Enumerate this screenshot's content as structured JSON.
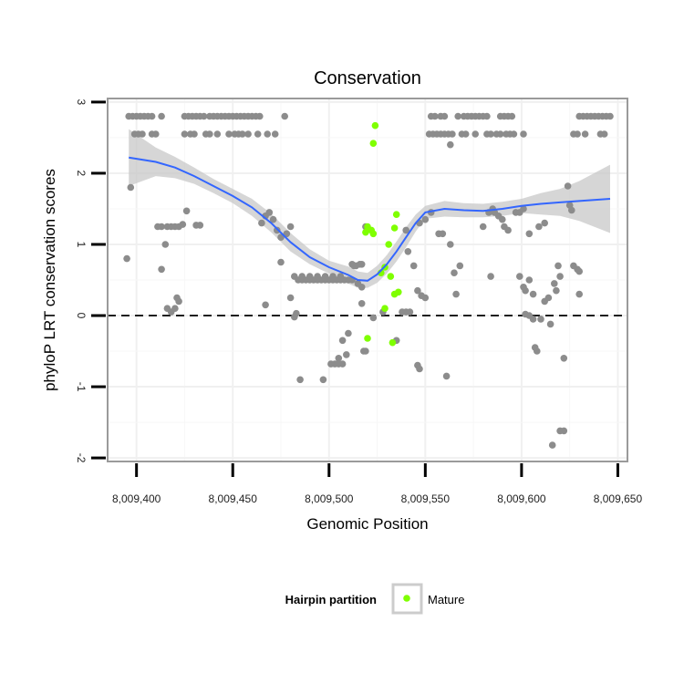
{
  "chart_data": {
    "type": "scatter",
    "title": "Conservation",
    "xlabel": "Genomic Position",
    "ylabel": "phyloP LRT conservation scores",
    "xlim": [
      8009385,
      8009655
    ],
    "ylim": [
      -2.05,
      3.05
    ],
    "x_ticks": [
      8009400,
      8009450,
      8009500,
      8009550,
      8009600,
      8009650
    ],
    "x_tick_labels": [
      "8,009,400",
      "8,009,450",
      "8,009,500",
      "8,009,550",
      "8,009,600",
      "8,009,650"
    ],
    "y_ticks": [
      -2,
      -1,
      0,
      1,
      2,
      3
    ],
    "y_tick_labels": [
      "-2",
      "-1",
      "0",
      "1",
      "2",
      "3"
    ],
    "grid": true,
    "reference_line": {
      "y": 0,
      "style": "dashed"
    },
    "legend": {
      "title": "Hairpin partition",
      "entries": [
        {
          "label": "Mature",
          "color": "#7fff00"
        }
      ],
      "position": "bottom"
    },
    "colors": {
      "other": "#8c8c8c",
      "mature": "#7fff00",
      "smooth": "#3366ff",
      "ribbon": "#c8c8c8"
    },
    "series": [
      {
        "color": "#8c8c8c",
        "points": [
          [
            8009395,
            0.8
          ],
          [
            8009397,
            1.8
          ],
          [
            8009396,
            2.8
          ],
          [
            8009398,
            2.8
          ],
          [
            8009400,
            2.8
          ],
          [
            8009402,
            2.8
          ],
          [
            8009404,
            2.8
          ],
          [
            8009406,
            2.8
          ],
          [
            8009408,
            2.8
          ],
          [
            8009413,
            2.8
          ],
          [
            8009399,
            2.55
          ],
          [
            8009401,
            2.55
          ],
          [
            8009403,
            2.55
          ],
          [
            8009408,
            2.55
          ],
          [
            8009410,
            2.55
          ],
          [
            8009411,
            1.25
          ],
          [
            8009413,
            1.25
          ],
          [
            8009416,
            1.25
          ],
          [
            8009418,
            1.25
          ],
          [
            8009420,
            1.25
          ],
          [
            8009422,
            1.25
          ],
          [
            8009424,
            1.28
          ],
          [
            8009426,
            1.47
          ],
          [
            8009431,
            1.27
          ],
          [
            8009433,
            1.27
          ],
          [
            8009413,
            0.65
          ],
          [
            8009415,
            1.0
          ],
          [
            8009416,
            0.1
          ],
          [
            8009418,
            0.05
          ],
          [
            8009420,
            0.1
          ],
          [
            8009421,
            0.25
          ],
          [
            8009422,
            0.2
          ],
          [
            8009425,
            2.8
          ],
          [
            8009427,
            2.8
          ],
          [
            8009429,
            2.8
          ],
          [
            8009431,
            2.8
          ],
          [
            8009433,
            2.8
          ],
          [
            8009435,
            2.8
          ],
          [
            8009438,
            2.8
          ],
          [
            8009440,
            2.8
          ],
          [
            8009442,
            2.8
          ],
          [
            8009444,
            2.8
          ],
          [
            8009446,
            2.8
          ],
          [
            8009448,
            2.8
          ],
          [
            8009450,
            2.8
          ],
          [
            8009452,
            2.8
          ],
          [
            8009454,
            2.8
          ],
          [
            8009456,
            2.8
          ],
          [
            8009458,
            2.8
          ],
          [
            8009460,
            2.8
          ],
          [
            8009462,
            2.8
          ],
          [
            8009464,
            2.8
          ],
          [
            8009477,
            2.8
          ],
          [
            8009425,
            2.55
          ],
          [
            8009428,
            2.55
          ],
          [
            8009430,
            2.55
          ],
          [
            8009436,
            2.55
          ],
          [
            8009438,
            2.55
          ],
          [
            8009442,
            2.55
          ],
          [
            8009448,
            2.55
          ],
          [
            8009451,
            2.55
          ],
          [
            8009453,
            2.55
          ],
          [
            8009455,
            2.55
          ],
          [
            8009458,
            2.55
          ],
          [
            8009463,
            2.55
          ],
          [
            8009468,
            2.55
          ],
          [
            8009472,
            2.55
          ],
          [
            8009465,
            1.3
          ],
          [
            8009467,
            1.4
          ],
          [
            8009469,
            1.45
          ],
          [
            8009471,
            1.35
          ],
          [
            8009473,
            1.2
          ],
          [
            8009475,
            1.1
          ],
          [
            8009478,
            1.15
          ],
          [
            8009480,
            1.25
          ],
          [
            8009475,
            0.75
          ],
          [
            8009467,
            0.15
          ],
          [
            8009482,
            0.55
          ],
          [
            8009484,
            0.5
          ],
          [
            8009480,
            0.25
          ],
          [
            8009482,
            -0.02
          ],
          [
            8009483,
            0.03
          ],
          [
            8009486,
            0.5
          ],
          [
            8009488,
            0.5
          ],
          [
            8009490,
            0.5
          ],
          [
            8009492,
            0.5
          ],
          [
            8009494,
            0.5
          ],
          [
            8009496,
            0.5
          ],
          [
            8009498,
            0.5
          ],
          [
            8009500,
            0.5
          ],
          [
            8009502,
            0.5
          ],
          [
            8009504,
            0.5
          ],
          [
            8009506,
            0.5
          ],
          [
            8009508,
            0.5
          ],
          [
            8009510,
            0.5
          ],
          [
            8009512,
            0.5
          ],
          [
            8009486,
            0.55
          ],
          [
            8009490,
            0.55
          ],
          [
            8009494,
            0.55
          ],
          [
            8009498,
            0.55
          ],
          [
            8009502,
            0.55
          ],
          [
            8009506,
            0.55
          ],
          [
            8009507,
            -0.35
          ],
          [
            8009509,
            -0.55
          ],
          [
            8009505,
            -0.6
          ],
          [
            8009501,
            -0.68
          ],
          [
            8009503,
            -0.68
          ],
          [
            8009505,
            -0.68
          ],
          [
            8009507,
            -0.68
          ],
          [
            8009485,
            -0.9
          ],
          [
            8009497,
            -0.9
          ],
          [
            8009510,
            -0.25
          ],
          [
            8009512,
            0.72
          ],
          [
            8009513,
            0.7
          ],
          [
            8009514,
            0.7
          ],
          [
            8009516,
            0.72
          ],
          [
            8009517,
            0.72
          ],
          [
            8009515,
            0.45
          ],
          [
            8009517,
            0.4
          ],
          [
            8009519,
            -0.5
          ],
          [
            8009518,
            -0.5
          ],
          [
            8009519,
            1.25
          ],
          [
            8009523,
            -0.03
          ],
          [
            8009528,
            0.05
          ],
          [
            8009517,
            0.17
          ],
          [
            8009538,
            0.05
          ],
          [
            8009540,
            0.05
          ],
          [
            8009542,
            0.05
          ],
          [
            8009535,
            -0.35
          ],
          [
            8009540,
            1.2
          ],
          [
            8009541,
            0.9
          ],
          [
            8009544,
            0.7
          ],
          [
            8009546,
            0.35
          ],
          [
            8009548,
            0.28
          ],
          [
            8009550,
            0.25
          ],
          [
            8009547,
            1.3
          ],
          [
            8009550,
            1.35
          ],
          [
            8009553,
            1.45
          ],
          [
            8009557,
            1.15
          ],
          [
            8009559,
            1.15
          ],
          [
            8009563,
            1.0
          ],
          [
            8009565,
            0.6
          ],
          [
            8009566,
            0.3
          ],
          [
            8009568,
            0.7
          ],
          [
            8009547,
            -0.75
          ],
          [
            8009546,
            -0.7
          ],
          [
            8009561,
            -0.85
          ],
          [
            8009552,
            2.55
          ],
          [
            8009554,
            2.55
          ],
          [
            8009556,
            2.55
          ],
          [
            8009558,
            2.55
          ],
          [
            8009560,
            2.55
          ],
          [
            8009562,
            2.55
          ],
          [
            8009564,
            2.55
          ],
          [
            8009569,
            2.55
          ],
          [
            8009571,
            2.55
          ],
          [
            8009563,
            2.4
          ],
          [
            8009553,
            2.8
          ],
          [
            8009555,
            2.8
          ],
          [
            8009558,
            2.8
          ],
          [
            8009560,
            2.8
          ],
          [
            8009567,
            2.8
          ],
          [
            8009570,
            2.8
          ],
          [
            8009572,
            2.8
          ],
          [
            8009574,
            2.8
          ],
          [
            8009576,
            2.8
          ],
          [
            8009578,
            2.8
          ],
          [
            8009580,
            2.8
          ],
          [
            8009582,
            2.8
          ],
          [
            8009589,
            2.8
          ],
          [
            8009591,
            2.8
          ],
          [
            8009593,
            2.8
          ],
          [
            8009595,
            2.8
          ],
          [
            8009576,
            2.55
          ],
          [
            8009582,
            2.55
          ],
          [
            8009584,
            2.55
          ],
          [
            8009587,
            2.55
          ],
          [
            8009589,
            2.55
          ],
          [
            8009592,
            2.55
          ],
          [
            8009594,
            2.55
          ],
          [
            8009596,
            2.55
          ],
          [
            8009601,
            2.55
          ],
          [
            8009580,
            1.25
          ],
          [
            8009583,
            1.45
          ],
          [
            8009585,
            1.5
          ],
          [
            8009586,
            1.45
          ],
          [
            8009588,
            1.4
          ],
          [
            8009590,
            1.35
          ],
          [
            8009591,
            1.25
          ],
          [
            8009593,
            1.2
          ],
          [
            8009597,
            1.45
          ],
          [
            8009599,
            1.45
          ],
          [
            8009601,
            1.5
          ],
          [
            8009604,
            1.15
          ],
          [
            8009609,
            1.25
          ],
          [
            8009612,
            1.3
          ],
          [
            8009584,
            0.55
          ],
          [
            8009599,
            0.55
          ],
          [
            8009602,
            0.35
          ],
          [
            8009604,
            0.5
          ],
          [
            8009606,
            0.3
          ],
          [
            8009601,
            0.4
          ],
          [
            8009602,
            0.02
          ],
          [
            8009604,
            0.0
          ],
          [
            8009606,
            -0.05
          ],
          [
            8009607,
            -0.45
          ],
          [
            8009608,
            -0.5
          ],
          [
            8009610,
            -0.05
          ],
          [
            8009612,
            0.2
          ],
          [
            8009614,
            0.25
          ],
          [
            8009615,
            -0.12
          ],
          [
            8009617,
            0.45
          ],
          [
            8009619,
            0.7
          ],
          [
            8009618,
            0.35
          ],
          [
            8009620,
            0.55
          ],
          [
            8009622,
            -0.6
          ],
          [
            8009616,
            -1.82
          ],
          [
            8009620,
            -1.62
          ],
          [
            8009622,
            -1.62
          ],
          [
            8009624,
            1.82
          ],
          [
            8009625,
            1.55
          ],
          [
            8009627,
            0.7
          ],
          [
            8009629,
            0.65
          ],
          [
            8009630,
            0.62
          ],
          [
            8009630,
            0.3
          ],
          [
            8009626,
            1.48
          ],
          [
            8009627,
            2.55
          ],
          [
            8009629,
            2.55
          ],
          [
            8009633,
            2.55
          ],
          [
            8009641,
            2.55
          ],
          [
            8009643,
            2.55
          ],
          [
            8009630,
            2.8
          ],
          [
            8009632,
            2.8
          ],
          [
            8009634,
            2.8
          ],
          [
            8009636,
            2.8
          ],
          [
            8009638,
            2.8
          ],
          [
            8009640,
            2.8
          ],
          [
            8009642,
            2.8
          ],
          [
            8009644,
            2.8
          ],
          [
            8009646,
            2.8
          ]
        ]
      },
      {
        "name": "Mature",
        "color": "#7fff00",
        "points": [
          [
            8009524,
            2.67
          ],
          [
            8009523,
            2.42
          ],
          [
            8009520,
            1.25
          ],
          [
            8009522,
            1.2
          ],
          [
            8009519,
            1.17
          ],
          [
            8009523,
            1.15
          ],
          [
            8009535,
            1.42
          ],
          [
            8009534,
            1.23
          ],
          [
            8009531,
            1.0
          ],
          [
            8009527,
            0.6
          ],
          [
            8009529,
            0.68
          ],
          [
            8009532,
            0.55
          ],
          [
            8009534,
            0.3
          ],
          [
            8009536,
            0.33
          ],
          [
            8009529,
            0.1
          ],
          [
            8009520,
            -0.32
          ],
          [
            8009533,
            -0.38
          ]
        ]
      }
    ],
    "smooth": {
      "x": [
        8009396,
        8009410,
        8009420,
        8009430,
        8009440,
        8009450,
        8009460,
        8009470,
        8009480,
        8009490,
        8009500,
        8009510,
        8009515,
        8009520,
        8009525,
        8009530,
        8009535,
        8009540,
        8009545,
        8009550,
        8009560,
        8009570,
        8009580,
        8009590,
        8009600,
        8009610,
        8009620,
        8009630,
        8009646
      ],
      "y": [
        2.22,
        2.16,
        2.08,
        1.96,
        1.82,
        1.68,
        1.52,
        1.3,
        1.03,
        0.82,
        0.68,
        0.57,
        0.5,
        0.49,
        0.58,
        0.72,
        0.9,
        1.1,
        1.3,
        1.45,
        1.5,
        1.48,
        1.47,
        1.5,
        1.54,
        1.57,
        1.59,
        1.61,
        1.64
      ],
      "lower": [
        1.82,
        1.96,
        1.93,
        1.85,
        1.72,
        1.58,
        1.4,
        1.17,
        0.9,
        0.72,
        0.59,
        0.45,
        0.39,
        0.39,
        0.46,
        0.59,
        0.76,
        0.96,
        1.18,
        1.36,
        1.39,
        1.38,
        1.38,
        1.4,
        1.44,
        1.42,
        1.4,
        1.33,
        1.16
      ],
      "upper": [
        2.62,
        2.36,
        2.23,
        2.08,
        1.92,
        1.78,
        1.64,
        1.43,
        1.16,
        0.93,
        0.77,
        0.69,
        0.62,
        0.6,
        0.7,
        0.85,
        1.04,
        1.24,
        1.42,
        1.54,
        1.61,
        1.58,
        1.57,
        1.6,
        1.64,
        1.72,
        1.78,
        1.89,
        2.12
      ]
    }
  }
}
